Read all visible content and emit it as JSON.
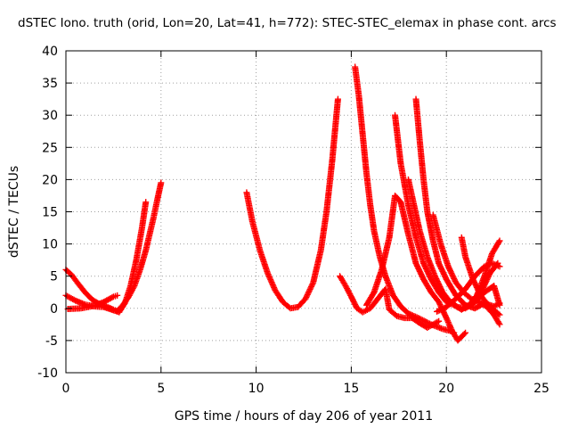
{
  "chart_data": {
    "type": "scatter",
    "title": "dSTEC Iono. truth (orid, Lon=20, Lat=41, h=772): STEC-STEC_elemax in phase cont. arcs",
    "xlabel": "GPS time / hours of day 206 of year 2011",
    "ylabel": "dSTEC  / TECUs",
    "xlim": [
      0,
      25
    ],
    "ylim": [
      -10,
      40
    ],
    "x_ticks": [
      "0",
      "5",
      "10",
      "15",
      "20",
      "25"
    ],
    "y_ticks": [
      "-10",
      "-5",
      "0",
      "5",
      "10",
      "15",
      "20",
      "25",
      "30",
      "35",
      "40"
    ],
    "grid": true,
    "marker": "+",
    "color": "#ff0000",
    "series": [
      {
        "x": [
          0.0,
          0.3,
          0.6,
          1.0,
          1.4,
          1.8,
          2.2,
          2.5,
          2.7,
          3.0,
          3.3,
          3.6,
          3.9,
          4.2,
          4.4,
          4.6,
          4.8,
          5.0
        ],
        "y": [
          6.0,
          5.2,
          4.0,
          2.5,
          1.3,
          0.6,
          0.2,
          -0.2,
          -0.4,
          0.5,
          1.8,
          3.5,
          6.0,
          9.0,
          11.5,
          14.0,
          16.8,
          19.5
        ]
      },
      {
        "x": [
          0.0,
          0.5,
          1.0,
          1.5,
          2.0,
          2.5,
          2.8,
          3.1,
          3.4,
          3.7,
          4.0,
          4.2
        ],
        "y": [
          2.0,
          1.2,
          0.6,
          0.3,
          0.2,
          -0.3,
          -0.6,
          0.8,
          3.5,
          7.5,
          12.5,
          16.5
        ]
      },
      {
        "x": [
          0.1,
          0.8,
          1.5,
          2.0,
          2.5,
          2.7
        ],
        "y": [
          -0.1,
          0.0,
          0.4,
          1.0,
          1.8,
          2.0
        ]
      },
      {
        "x": [
          9.5,
          9.8,
          10.2,
          10.6,
          11.0,
          11.4,
          11.8,
          12.2,
          12.6,
          13.0,
          13.4,
          13.7,
          14.0,
          14.3
        ],
        "y": [
          18.0,
          13.5,
          9.0,
          5.5,
          2.8,
          1.0,
          0.0,
          0.2,
          1.5,
          4.0,
          9.0,
          15.0,
          23.0,
          32.5
        ]
      },
      {
        "x": [
          14.4,
          14.7,
          15.0,
          15.3,
          15.6,
          16.0,
          16.4,
          16.8,
          17.0,
          17.4,
          17.8,
          18.2,
          18.6,
          19.0,
          19.3,
          19.6
        ],
        "y": [
          5.0,
          3.5,
          1.8,
          0.0,
          -0.6,
          0.0,
          1.5,
          3.0,
          -0.2,
          -1.2,
          -1.5,
          -1.5,
          -2.3,
          -3.0,
          -2.5,
          -2.0
        ]
      },
      {
        "x": [
          15.2,
          15.4,
          15.6,
          15.8,
          16.0,
          16.2,
          16.5,
          16.8,
          17.2,
          17.6,
          18.0,
          18.6,
          19.2,
          19.8,
          20.2,
          20.4
        ],
        "y": [
          37.5,
          33.0,
          27.0,
          21.0,
          16.0,
          12.0,
          8.0,
          5.0,
          2.0,
          0.3,
          -0.8,
          -1.6,
          -2.5,
          -3.2,
          -3.5,
          -3.8
        ]
      },
      {
        "x": [
          15.8,
          16.2,
          16.6,
          17.0,
          17.3,
          17.6,
          18.0,
          18.4,
          18.8,
          19.2,
          19.6,
          20.0,
          20.3,
          20.6,
          21.0
        ],
        "y": [
          0.5,
          2.5,
          6.0,
          11.0,
          17.5,
          16.5,
          11.5,
          7.0,
          4.5,
          2.5,
          1.0,
          -1.5,
          -3.5,
          -5.0,
          -3.8
        ]
      },
      {
        "x": [
          17.3,
          17.6,
          18.0,
          18.4,
          18.8,
          19.2,
          19.6,
          20.0,
          20.4,
          20.8,
          21.2,
          21.6,
          22.0,
          22.4,
          22.8
        ],
        "y": [
          30.0,
          22.5,
          16.0,
          11.0,
          7.0,
          4.5,
          2.5,
          1.0,
          0.5,
          -0.2,
          0.5,
          2.0,
          5.0,
          8.5,
          10.5
        ]
      },
      {
        "x": [
          18.4,
          18.6,
          18.8,
          19.0,
          19.3,
          19.6,
          20.0,
          20.5,
          21.0,
          21.5,
          22.0,
          22.5,
          22.8
        ],
        "y": [
          32.5,
          26.0,
          20.0,
          15.0,
          10.5,
          7.0,
          4.5,
          2.0,
          0.5,
          0.0,
          0.8,
          0.3,
          0.8
        ]
      },
      {
        "x": [
          18.0,
          18.3,
          18.6,
          19.0,
          19.4,
          19.8,
          20.2,
          20.6,
          21.0,
          21.5,
          22.0,
          22.5,
          22.8
        ],
        "y": [
          20.0,
          16.0,
          12.0,
          8.0,
          5.0,
          2.5,
          1.0,
          0.2,
          0.0,
          1.0,
          2.5,
          3.5,
          0.5
        ]
      },
      {
        "x": [
          19.3,
          19.7,
          20.1,
          20.5,
          20.9,
          21.3,
          21.7,
          22.1,
          22.5,
          22.8
        ],
        "y": [
          14.5,
          10.0,
          6.5,
          4.0,
          2.5,
          1.5,
          1.0,
          0.3,
          -1.0,
          -2.5
        ]
      },
      {
        "x": [
          20.8,
          21.0,
          21.4,
          21.8,
          22.2,
          22.6,
          22.8
        ],
        "y": [
          11.0,
          8.0,
          4.5,
          2.0,
          0.5,
          -0.5,
          -1.0
        ]
      },
      {
        "x": [
          19.5,
          20.0,
          20.5,
          21.0,
          21.5,
          22.0,
          22.4,
          22.8
        ],
        "y": [
          -0.5,
          0.2,
          1.5,
          3.0,
          5.0,
          6.5,
          7.0,
          6.5
        ]
      },
      {
        "x": [
          21.5,
          21.9,
          22.3,
          22.7
        ],
        "y": [
          1.0,
          3.0,
          5.5,
          7.0
        ]
      }
    ]
  }
}
